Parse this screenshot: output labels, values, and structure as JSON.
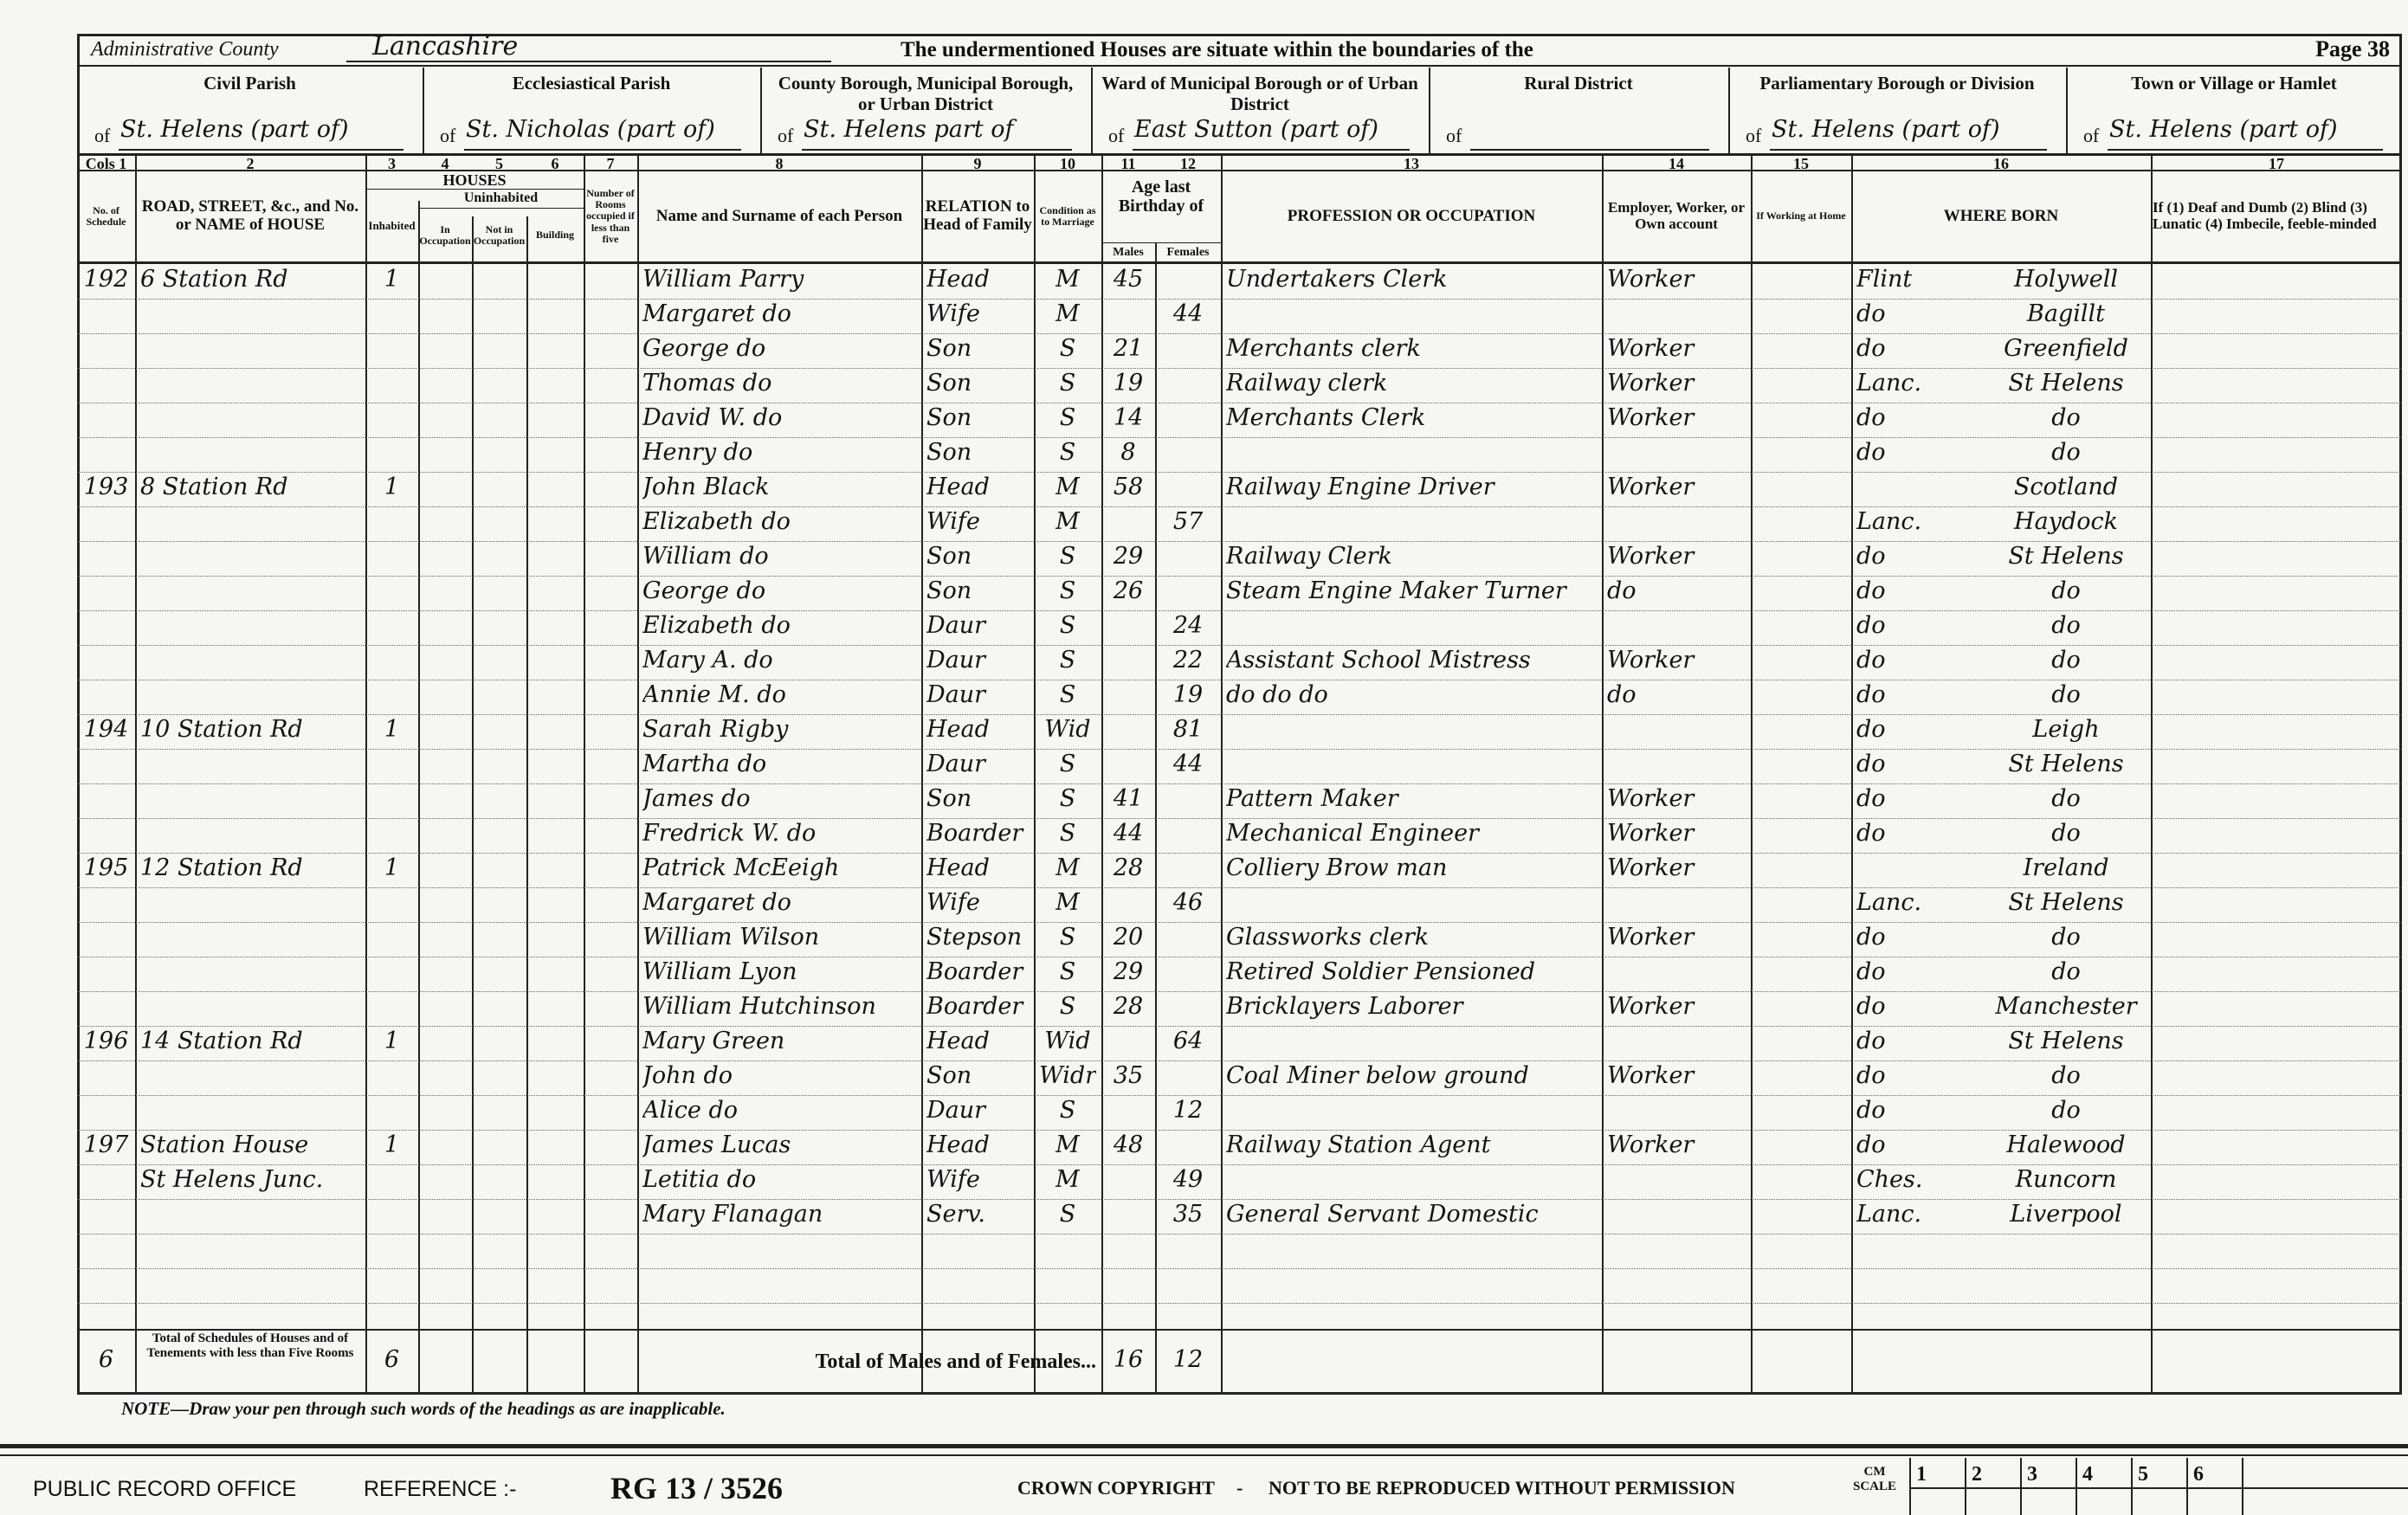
{
  "header": {
    "county_label": "Administrative County",
    "county": "Lancashire",
    "title": "The undermentioned Houses are situate within the boundaries of the",
    "page": "Page 38",
    "area_prefix": "of"
  },
  "areas": [
    {
      "label": "Civil Parish",
      "value": "St. Helens (part of)"
    },
    {
      "label": "Ecclesiastical Parish",
      "value": "St. Nicholas (part of)"
    },
    {
      "label": "County Borough, Municipal Borough, or Urban District",
      "value": "St. Helens part of"
    },
    {
      "label": "Ward of Municipal Borough or of Urban District",
      "value": "East Sutton (part of)"
    },
    {
      "label": "Rural District"
    },
    {
      "label": "Parliamentary Borough or Division",
      "value": "St. Helens (part of)"
    },
    {
      "label": "Town or Village or Hamlet",
      "value": "St. Helens (part of)"
    }
  ],
  "column_numbers": [
    "Cols 1",
    "2",
    "3",
    "4",
    "5",
    "6",
    "7",
    "8",
    "9",
    "10",
    "11",
    "12",
    "13",
    "14",
    "15",
    "16",
    "17"
  ],
  "group_headings": {
    "houses": "HOUSES",
    "uninhabited": "Uninhabited",
    "age": "Age last Birthday of"
  },
  "headings": [
    "No. of Schedule",
    "ROAD, STREET, &c., and No. or NAME of HOUSE",
    "Inhabited",
    "In Occupation",
    "Not in Occupation",
    "Building",
    "Number of Rooms occupied if less than five",
    "Name and Surname of each Person",
    "RELATION to Head of Family",
    "Condition as to Marriage",
    "Males",
    "Females",
    "PROFESSION OR OCCUPATION",
    "Employer, Worker, or Own account",
    "If Working at Home",
    "WHERE BORN",
    "If (1) Deaf and Dumb (2) Blind (3) Lunatic (4) Imbecile, feeble-minded"
  ],
  "rows": [
    {
      "schedule": 192,
      "address": "6 Station Rd",
      "inhabited": 1,
      "name": "William Parry",
      "relation": "Head",
      "condition": "M",
      "age_male": 45,
      "occupation": "Undertakers Clerk",
      "employer": "Worker",
      "born_county": "Flint",
      "born_place": "Holywell"
    },
    {
      "name": "Margaret do",
      "relation": "Wife",
      "condition": "M",
      "age_female": 44,
      "born_county": "do",
      "born_place": "Bagillt"
    },
    {
      "name": "George do",
      "relation": "Son",
      "condition": "S",
      "age_male": 21,
      "occupation": "Merchants clerk",
      "employer": "Worker",
      "born_county": "do",
      "born_place": "Greenfield"
    },
    {
      "name": "Thomas do",
      "relation": "Son",
      "condition": "S",
      "age_male": 19,
      "occupation": "Railway clerk",
      "employer": "Worker",
      "born_county": "Lanc.",
      "born_place": "St Helens"
    },
    {
      "name": "David W. do",
      "relation": "Son",
      "condition": "S",
      "age_male": 14,
      "occupation": "Merchants Clerk",
      "employer": "Worker",
      "born_county": "do",
      "born_place": "do"
    },
    {
      "name": "Henry do",
      "relation": "Son",
      "condition": "S",
      "age_male": 8,
      "born_county": "do",
      "born_place": "do"
    },
    {
      "schedule": 193,
      "address": "8 Station Rd",
      "inhabited": 1,
      "name": "John Black",
      "relation": "Head",
      "condition": "M",
      "age_male": 58,
      "occupation": "Railway Engine Driver",
      "employer": "Worker",
      "born_place": "Scotland"
    },
    {
      "name": "Elizabeth do",
      "relation": "Wife",
      "condition": "M",
      "age_female": 57,
      "born_county": "Lanc.",
      "born_place": "Haydock"
    },
    {
      "name": "William do",
      "relation": "Son",
      "condition": "S",
      "age_male": 29,
      "occupation": "Railway Clerk",
      "employer": "Worker",
      "born_county": "do",
      "born_place": "St Helens"
    },
    {
      "name": "George do",
      "relation": "Son",
      "condition": "S",
      "age_male": 26,
      "occupation": "Steam Engine Maker Turner",
      "employer": "do",
      "born_county": "do",
      "born_place": "do"
    },
    {
      "name": "Elizabeth do",
      "relation": "Daur",
      "condition": "S",
      "age_female": 24,
      "born_county": "do",
      "born_place": "do"
    },
    {
      "name": "Mary A. do",
      "relation": "Daur",
      "condition": "S",
      "age_female": 22,
      "occupation": "Assistant School Mistress",
      "employer": "Worker",
      "born_county": "do",
      "born_place": "do"
    },
    {
      "name": "Annie M. do",
      "relation": "Daur",
      "condition": "S",
      "age_female": 19,
      "occupation": "do do do",
      "employer": "do",
      "born_county": "do",
      "born_place": "do"
    },
    {
      "schedule": 194,
      "address": "10 Station Rd",
      "inhabited": 1,
      "name": "Sarah Rigby",
      "relation": "Head",
      "condition": "Wid",
      "age_female": 81,
      "born_county": "do",
      "born_place": "Leigh"
    },
    {
      "name": "Martha do",
      "relation": "Daur",
      "condition": "S",
      "age_female": 44,
      "born_county": "do",
      "born_place": "St Helens"
    },
    {
      "name": "James do",
      "relation": "Son",
      "condition": "S",
      "age_male": 41,
      "occupation": "Pattern Maker",
      "employer": "Worker",
      "born_county": "do",
      "born_place": "do"
    },
    {
      "name": "Fredrick W. do",
      "relation": "Boarder",
      "condition": "S",
      "age_male": 44,
      "occupation": "Mechanical Engineer",
      "employer": "Worker",
      "born_county": "do",
      "born_place": "do"
    },
    {
      "schedule": 195,
      "address": "12 Station Rd",
      "inhabited": 1,
      "name": "Patrick McEeigh",
      "relation": "Head",
      "condition": "M",
      "age_male": 28,
      "occupation": "Colliery Brow man",
      "employer": "Worker",
      "born_place": "Ireland"
    },
    {
      "name": "Margaret do",
      "relation": "Wife",
      "condition": "M",
      "age_female": 46,
      "born_county": "Lanc.",
      "born_place": "St Helens"
    },
    {
      "name": "William Wilson",
      "relation": "Stepson",
      "condition": "S",
      "age_male": 20,
      "occupation": "Glassworks clerk",
      "employer": "Worker",
      "born_county": "do",
      "born_place": "do"
    },
    {
      "name": "William Lyon",
      "relation": "Boarder",
      "condition": "S",
      "age_male": 29,
      "occupation": "Retired Soldier Pensioned",
      "born_county": "do",
      "born_place": "do"
    },
    {
      "name": "William Hutchinson",
      "relation": "Boarder",
      "condition": "S",
      "age_male": 28,
      "occupation": "Bricklayers Laborer",
      "employer": "Worker",
      "born_county": "do",
      "born_place": "Manchester"
    },
    {
      "schedule": 196,
      "address": "14 Station Rd",
      "inhabited": 1,
      "name": "Mary Green",
      "relation": "Head",
      "condition": "Wid",
      "age_female": 64,
      "born_county": "do",
      "born_place": "St Helens"
    },
    {
      "name": "John do",
      "relation": "Son",
      "condition": "Widr",
      "age_male": 35,
      "occupation": "Coal Miner below ground",
      "employer": "Worker",
      "born_county": "do",
      "born_place": "do"
    },
    {
      "name": "Alice do",
      "relation": "Daur",
      "condition": "S",
      "age_female": 12,
      "born_county": "do",
      "born_place": "do"
    },
    {
      "schedule": 197,
      "address": "Station House",
      "inhabited": 1,
      "name": "James Lucas",
      "relation": "Head",
      "condition": "M",
      "age_male": 48,
      "occupation": "Railway Station Agent",
      "employer": "Worker",
      "born_county": "do",
      "born_place": "Halewood"
    },
    {
      "address": "St Helens Junc.",
      "name": "Letitia do",
      "relation": "Wife",
      "condition": "M",
      "age_female": 49,
      "born_county": "Ches.",
      "born_place": "Runcorn"
    },
    {
      "name": "Mary Flanagan",
      "relation": "Serv.",
      "condition": "S",
      "age_female": 35,
      "occupation": "General Servant Domestic",
      "born_county": "Lanc.",
      "born_place": "Liverpool"
    }
  ],
  "totals": {
    "schedules": 6,
    "schedules_label": "Total of Schedules of Houses and of Tenements with less than Five Rooms",
    "houses": 6,
    "persons_label": "Total of Males and of Females...",
    "males": 16,
    "females": 12
  },
  "note": "NOTE—Draw your pen through such words of the headings as are inapplicable.",
  "footer": {
    "office": "PUBLIC RECORD OFFICE",
    "reference_label": "REFERENCE :-",
    "reference": "RG 13 / 3526",
    "copyright": "CROWN COPYRIGHT",
    "separator": "-",
    "restriction": "NOT TO BE REPRODUCED WITHOUT PERMISSION",
    "scale_label": "CM SCALE",
    "scale": [
      "1",
      "2",
      "3",
      "4",
      "5",
      "6"
    ]
  }
}
